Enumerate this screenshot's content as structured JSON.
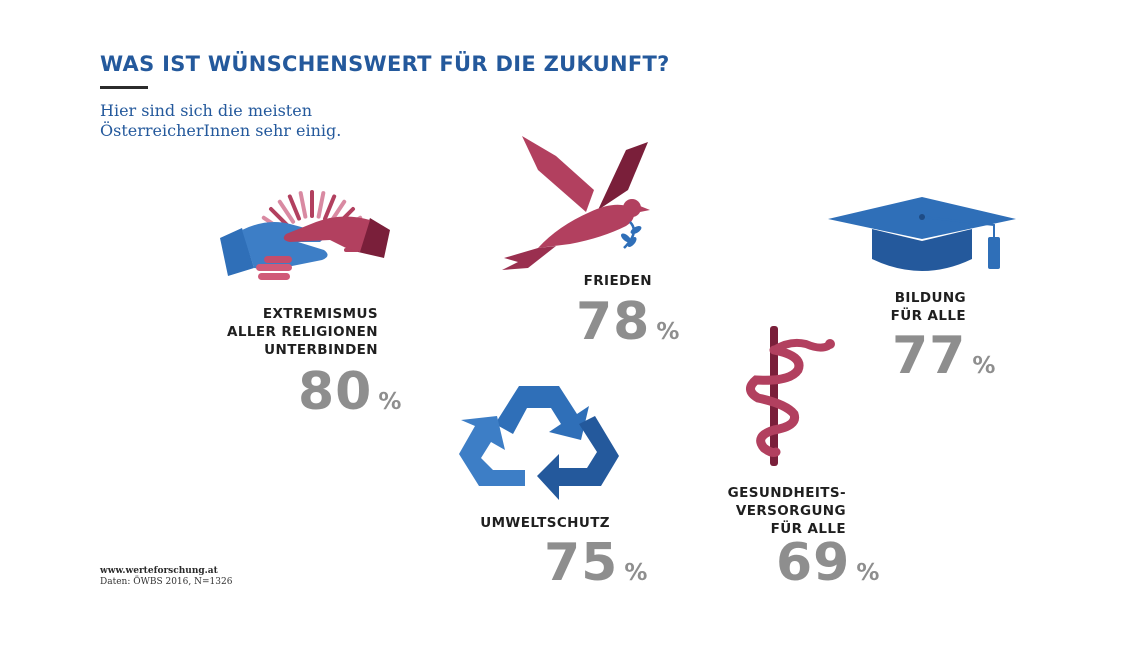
{
  "header": {
    "title": "WAS IST WÜNSCHENSWERT FÜR DIE ZUKUNFT?",
    "subtitle_line1": "Hier sind sich die meisten",
    "subtitle_line2": "ÖsterreicherInnen sehr einig."
  },
  "chart_data": {
    "type": "bar",
    "categories": [
      "EXTREMISMUS ALLER RELIGIONEN UNTERBINDEN",
      "FRIEDEN",
      "BILDUNG FÜR ALLE",
      "UMWELTSCHUTZ",
      "GESUNDHEITS-VERSORGUNG FÜR ALLE"
    ],
    "values": [
      80,
      78,
      77,
      75,
      69
    ],
    "unit": "%"
  },
  "items": {
    "extremismus": {
      "label_lines": [
        "EXTREMISMUS",
        "ALLER RELIGIONEN",
        "UNTERBINDEN"
      ],
      "value": "80",
      "unit": "%",
      "icon": "handshake-icon"
    },
    "frieden": {
      "label_lines": [
        "FRIEDEN"
      ],
      "value": "78",
      "unit": "%",
      "icon": "dove-icon"
    },
    "bildung": {
      "label_lines": [
        "BILDUNG",
        "FÜR ALLE"
      ],
      "value": "77",
      "unit": "%",
      "icon": "graduation-cap-icon"
    },
    "umwelt": {
      "label_lines": [
        "UMWELTSCHUTZ"
      ],
      "value": "75",
      "unit": "%",
      "icon": "recycle-icon"
    },
    "gesundheit": {
      "label_lines": [
        "GESUNDHEITS-",
        "VERSORGUNG",
        "FÜR ALLE"
      ],
      "value": "69",
      "unit": "%",
      "icon": "caduceus-icon"
    }
  },
  "source": {
    "url": "www.werteforschung.at",
    "note": "Daten: ÖWBS 2016, N=1326"
  },
  "colors": {
    "title_blue": "#24599c",
    "icon_blue": "#2f6fb8",
    "icon_red": "#b2405f",
    "icon_dark_red": "#7a1f3a",
    "value_grey": "#8e8e8e"
  }
}
